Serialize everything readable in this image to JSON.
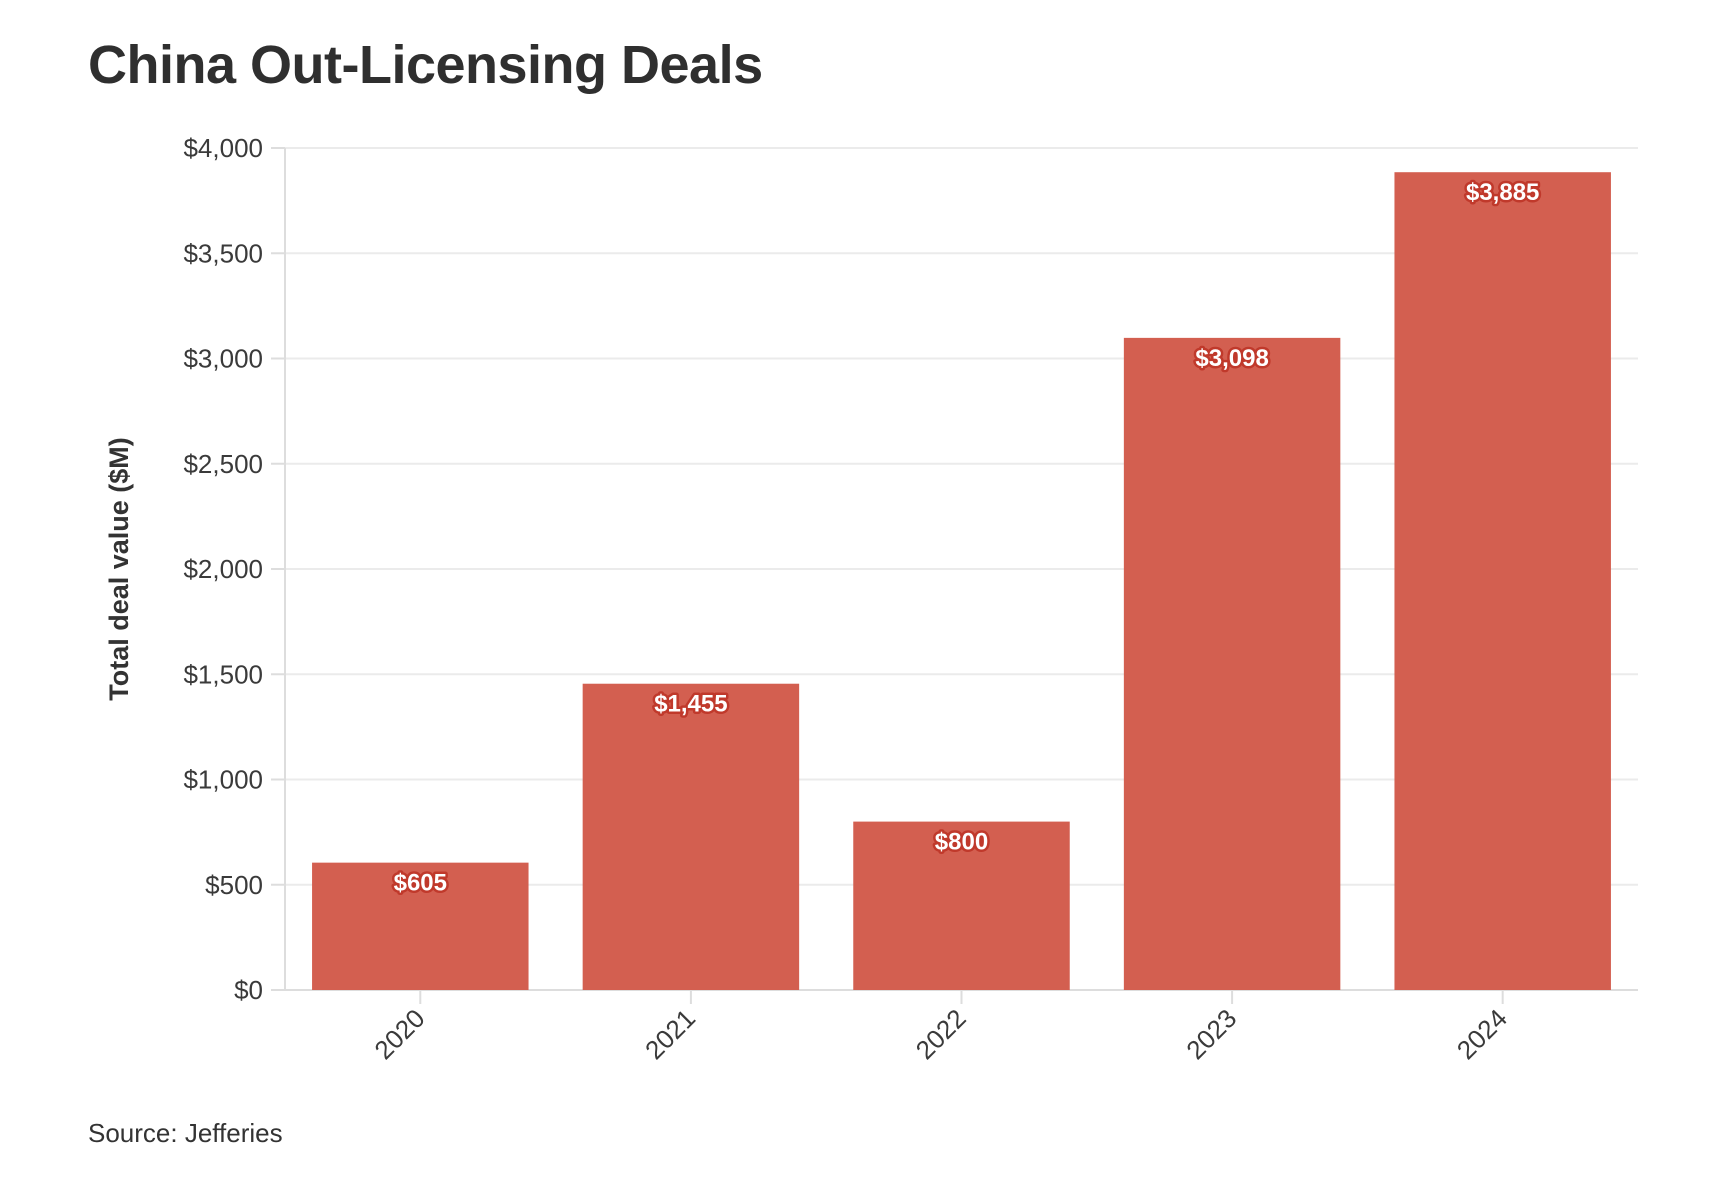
{
  "page": {
    "title": "China Out-Licensing Deals",
    "source": "Source: Jefferies"
  },
  "chart_data": {
    "type": "bar",
    "title": "China Out-Licensing Deals",
    "xlabel": "",
    "ylabel": "Total deal value ($M)",
    "categories": [
      "2020",
      "2021",
      "2022",
      "2023",
      "2024"
    ],
    "values": [
      605,
      1455,
      800,
      3098,
      3885
    ],
    "value_labels": [
      "$605",
      "$1,455",
      "$800",
      "$3,098",
      "$3,885"
    ],
    "ylim": [
      0,
      4000
    ],
    "yticks": [
      0,
      500,
      1000,
      1500,
      2000,
      2500,
      3000,
      3500,
      4000
    ],
    "ytick_labels": [
      "$0",
      "$500",
      "$1,000",
      "$1,500",
      "$2,000",
      "$2,500",
      "$3,000",
      "$3,500",
      "$4,000"
    ],
    "grid": true,
    "legend": "none",
    "colors": {
      "bar": "#d35f50",
      "grid": "#ebebeb",
      "axis": "#dddddd"
    }
  }
}
